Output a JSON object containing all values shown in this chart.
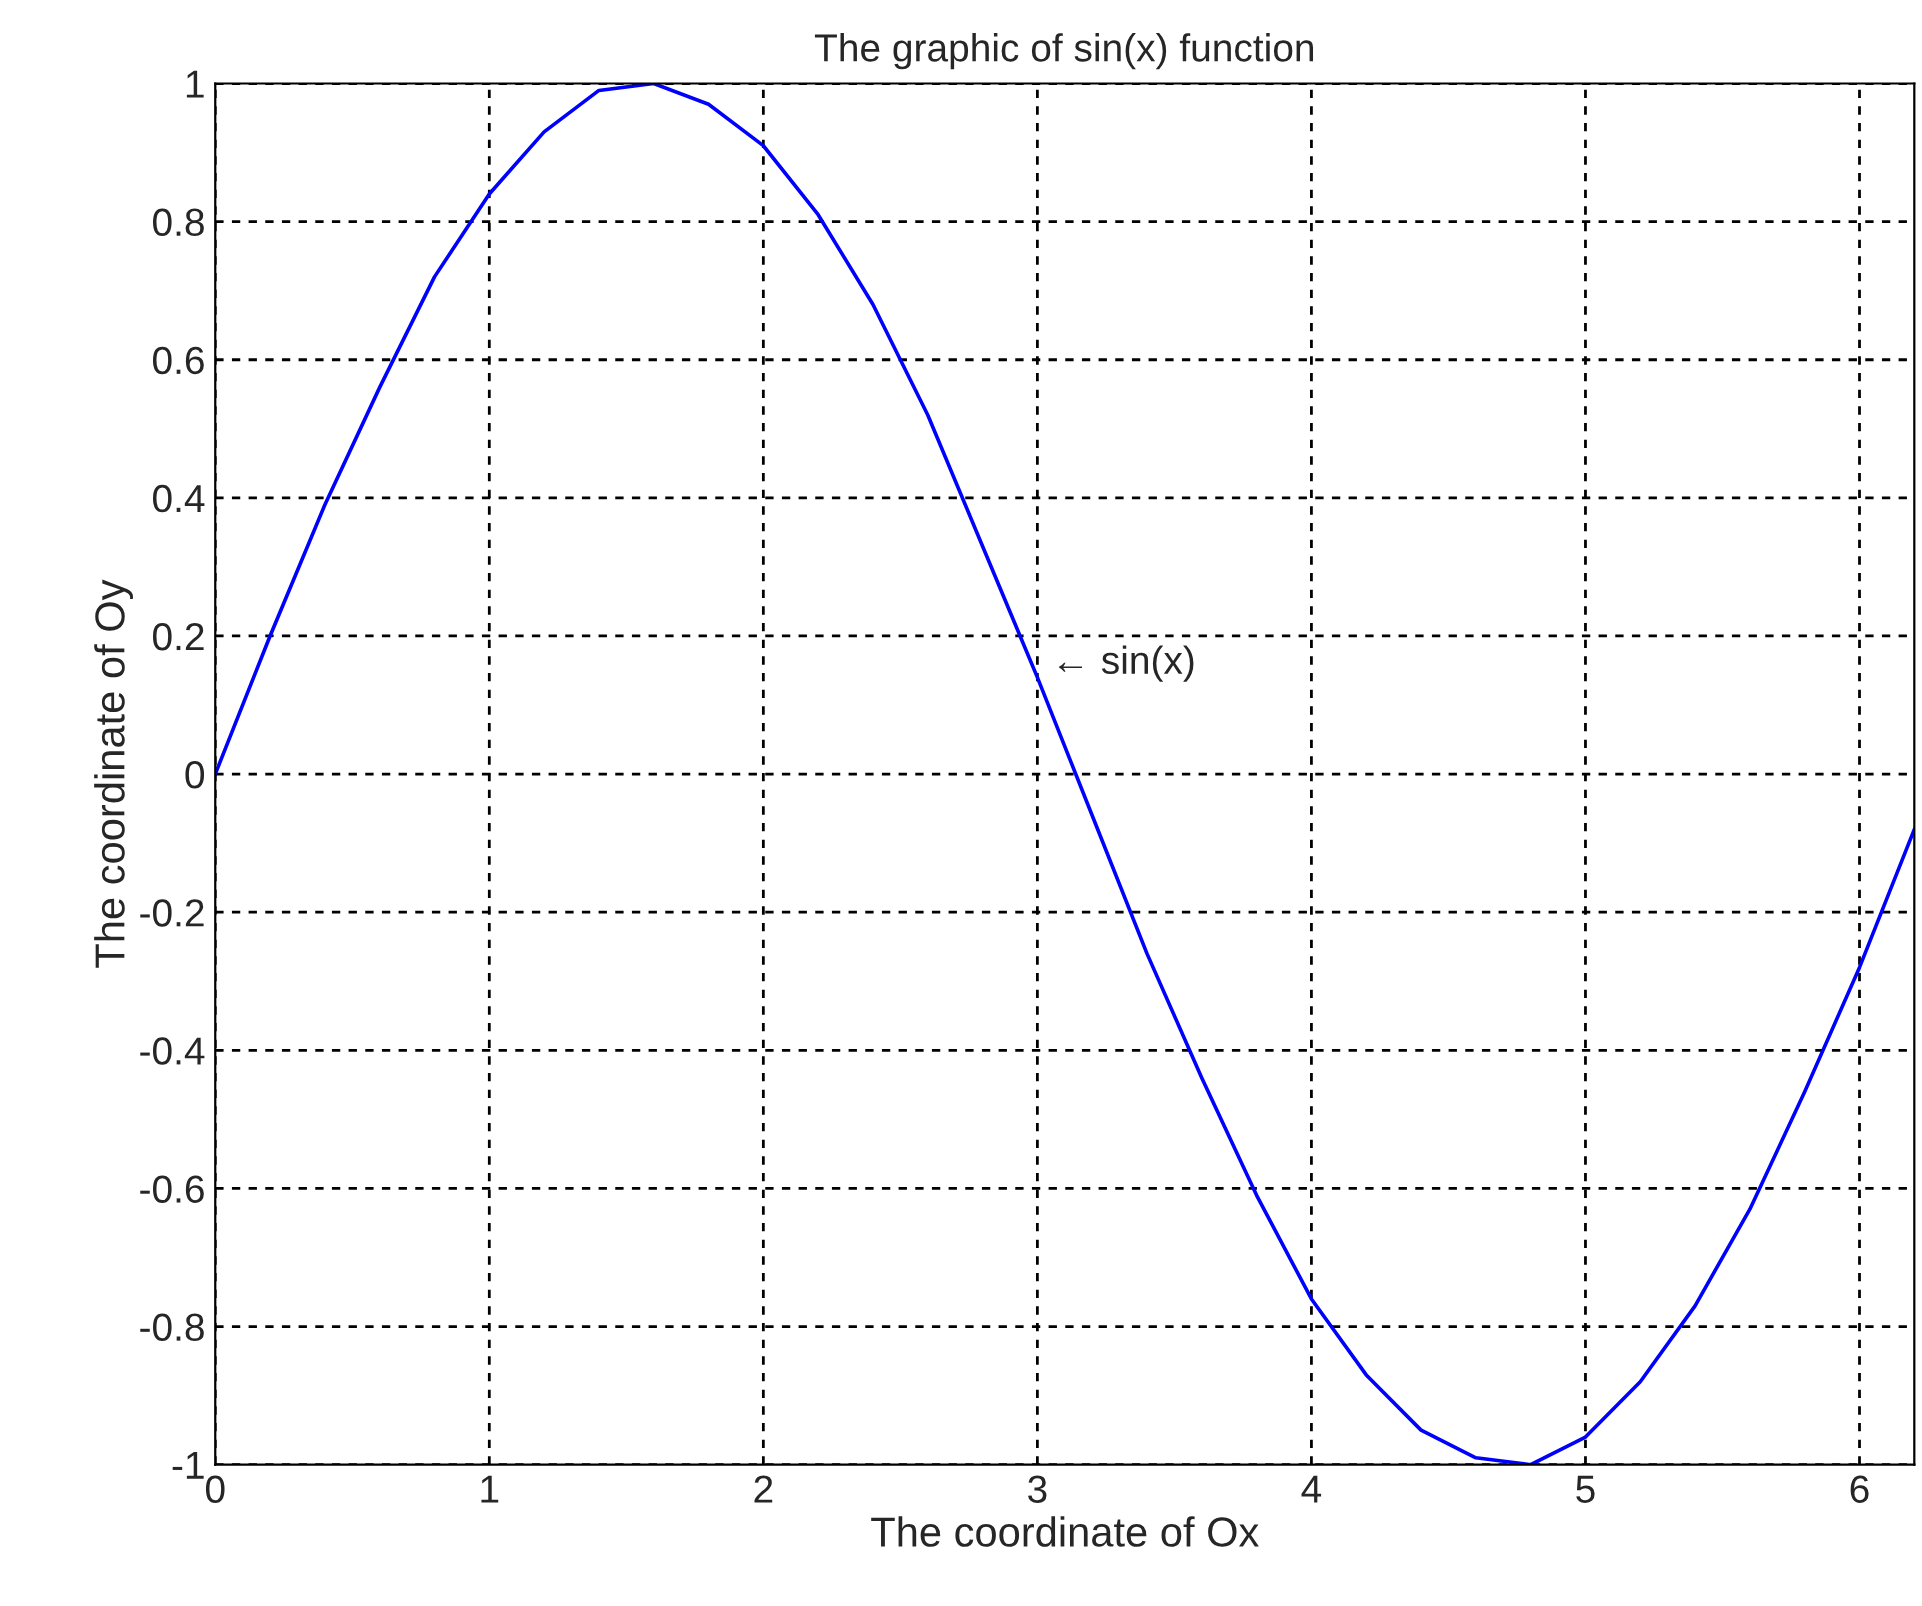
{
  "chart_data": {
    "type": "line",
    "title": "The graphic of sin(x) function",
    "xlabel": "The coordinate of Ox",
    "ylabel": "The coordinate of Oy",
    "x": [
      0,
      0.2,
      0.4,
      0.6,
      0.8,
      1.0,
      1.2,
      1.4,
      1.6,
      1.8,
      2.0,
      2.2,
      2.4,
      2.6,
      2.8,
      3.0,
      3.2,
      3.4,
      3.6,
      3.8,
      4.0,
      4.2,
      4.4,
      4.6,
      4.8,
      5.0,
      5.2,
      5.4,
      5.6,
      5.8,
      6.0,
      6.2
    ],
    "series": [
      {
        "color": "#0000ff",
        "values": [
          0,
          0.2,
          0.39,
          0.56,
          0.72,
          0.84,
          0.93,
          0.99,
          1.0,
          0.97,
          0.91,
          0.81,
          0.68,
          0.52,
          0.33,
          0.14,
          -0.06,
          -0.26,
          -0.44,
          -0.61,
          -0.76,
          -0.87,
          -0.95,
          -0.99,
          -1.0,
          -0.96,
          -0.88,
          -0.77,
          -0.63,
          -0.46,
          -0.28,
          -0.08
        ]
      }
    ],
    "xlim": [
      0,
      6.2
    ],
    "xticks": [
      0,
      1,
      2,
      3,
      4,
      5,
      6
    ],
    "ylim": [
      -1,
      1
    ],
    "yticks": [
      -1,
      -0.8,
      -0.6,
      -0.4,
      -0.2,
      0,
      0.2,
      0.4,
      0.6,
      0.8,
      1
    ],
    "grid": true,
    "line_style": "solid",
    "marker": "none",
    "annotations": [
      {
        "text": "← sin(x)",
        "x": 3.0,
        "y": 0.14
      }
    ]
  }
}
